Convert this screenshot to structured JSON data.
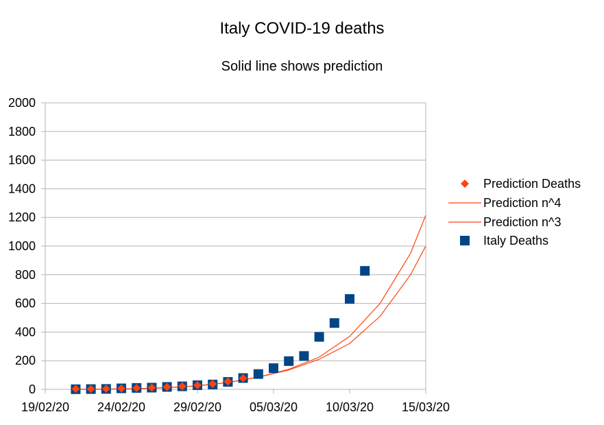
{
  "chart_data": {
    "type": "scatter",
    "title": "Italy COVID-19 deaths",
    "subtitle": "Solid line shows prediction",
    "xlabel": "",
    "ylabel": "",
    "x_tick_labels": [
      "19/02/20",
      "24/02/20",
      "29/02/20",
      "05/03/20",
      "10/03/20",
      "15/03/20"
    ],
    "x_tick_days": [
      0,
      5,
      10,
      15,
      20,
      25
    ],
    "xlim_days": [
      0,
      25
    ],
    "ylim": [
      0,
      2000
    ],
    "y_ticks": [
      0,
      200,
      400,
      600,
      800,
      1000,
      1200,
      1400,
      1600,
      1800,
      2000
    ],
    "grid": true,
    "legend_position": "right",
    "series": [
      {
        "name": "Prediction Deaths",
        "kind": "points",
        "marker": "diamond",
        "color": "#ff420e",
        "x_days": [
          2,
          3,
          4,
          5,
          6,
          7,
          8,
          9,
          10,
          11,
          12,
          13
        ],
        "y": [
          3,
          3,
          4,
          6,
          9,
          12,
          16,
          21,
          29,
          38,
          55,
          78
        ]
      },
      {
        "name": "Prediction n^4",
        "kind": "line",
        "color": "#ff420e",
        "x_days": [
          2,
          4,
          6,
          8,
          10,
          12,
          14,
          16,
          18,
          20,
          22,
          24,
          25
        ],
        "y": [
          0,
          2,
          5,
          12,
          25,
          48,
          85,
          140,
          225,
          370,
          600,
          950,
          1215
        ]
      },
      {
        "name": "Prediction n^3",
        "kind": "line",
        "color": "#ff420e",
        "x_days": [
          2,
          4,
          6,
          8,
          10,
          12,
          14,
          16,
          18,
          20,
          22,
          24,
          25
        ],
        "y": [
          0,
          2,
          5,
          12,
          25,
          48,
          85,
          135,
          210,
          320,
          510,
          800,
          1000
        ]
      },
      {
        "name": "Italy Deaths",
        "kind": "points",
        "marker": "square",
        "color": "#004586",
        "x_days": [
          2,
          3,
          4,
          5,
          6,
          7,
          8,
          9,
          10,
          11,
          12,
          13,
          14,
          15,
          16,
          17,
          18,
          19,
          20,
          21
        ],
        "y": [
          1,
          2,
          3,
          7,
          10,
          12,
          17,
          21,
          29,
          34,
          52,
          79,
          107,
          148,
          197,
          233,
          366,
          463,
          631,
          827
        ]
      }
    ]
  }
}
